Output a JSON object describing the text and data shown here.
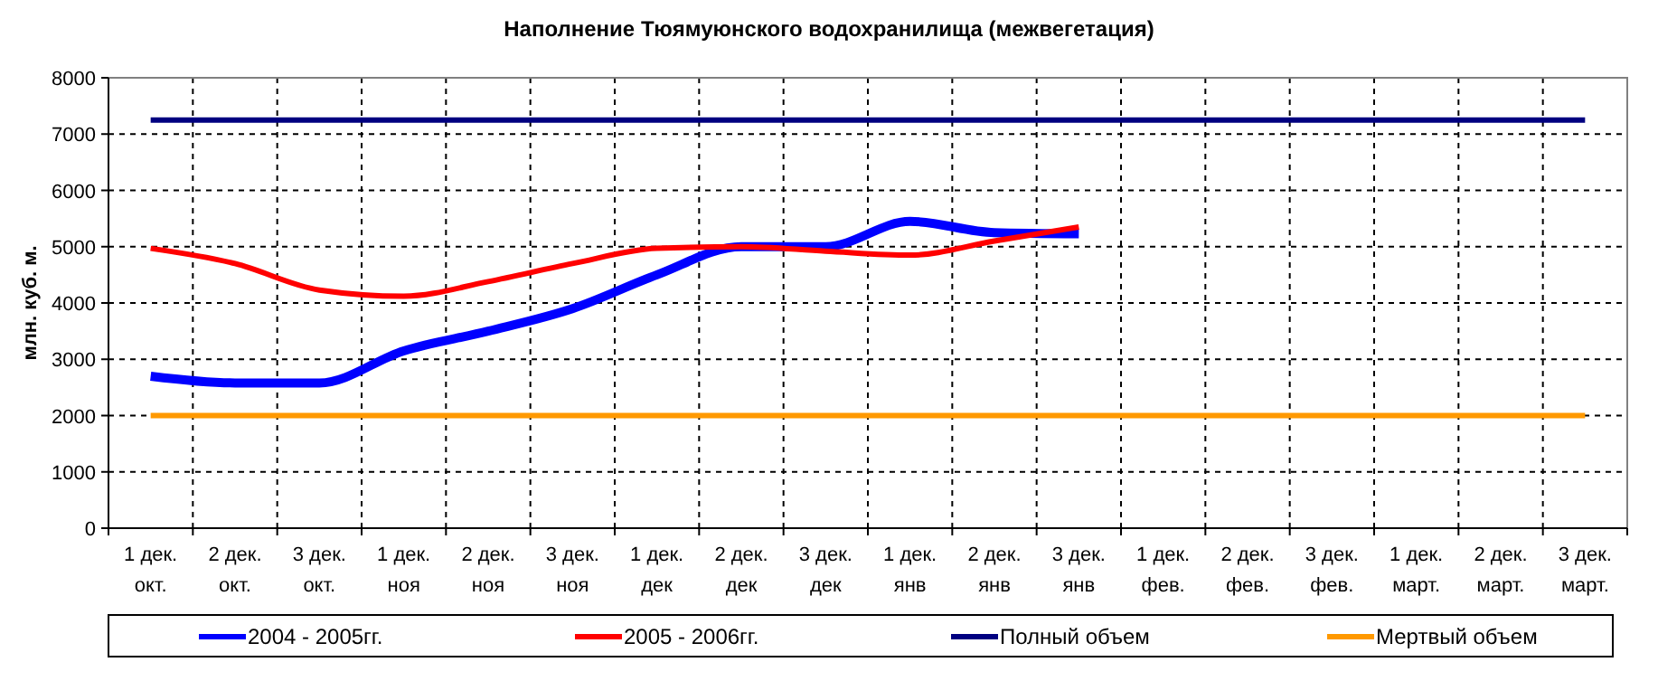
{
  "chart_data": {
    "type": "line",
    "title": "Наполнение Тюямуюнского водохранилища (межвегетация)",
    "ylabel": "млн. куб. м.",
    "categories": [
      "1 дек.\nокт.",
      "2 дек.\nокт.",
      "3 дек.\nокт.",
      "1 дек.\nноя",
      "2 дек.\nноя",
      "3 дек.\nноя",
      "1 дек.\nдек",
      "2 дек.\nдек",
      "3 дек.\nдек",
      "1 дек.\nянв",
      "2 дек.\nянв",
      "3 дек.\nянв",
      "1 дек.\nфев.",
      "2 дек.\nфев.",
      "3 дек.\nфев.",
      "1 дек.\nмарт.",
      "2 дек.\nмарт.",
      "3 дек.\nмарт."
    ],
    "series": [
      {
        "name": "2004 - 2005гг.",
        "color": "#0000ff",
        "values": [
          2700,
          2580,
          2580,
          3150,
          3500,
          3900,
          4500,
          5000,
          5000,
          5450,
          5250,
          5230,
          null,
          null,
          null,
          null,
          null,
          null
        ]
      },
      {
        "name": "2005 - 2006гг.",
        "color": "#ff0000",
        "values": [
          4970,
          4700,
          4230,
          4120,
          4380,
          4700,
          4970,
          5000,
          4920,
          4850,
          5100,
          5350,
          null,
          null,
          null,
          null,
          null,
          null
        ]
      },
      {
        "name": "Полный объем",
        "color": "#000080",
        "values": [
          7250,
          7250,
          7250,
          7250,
          7250,
          7250,
          7250,
          7250,
          7250,
          7250,
          7250,
          7250,
          7250,
          7250,
          7250,
          7250,
          7250,
          7250
        ]
      },
      {
        "name": "Мертвый объем",
        "color": "#ff9900",
        "values": [
          2000,
          2000,
          2000,
          2000,
          2000,
          2000,
          2000,
          2000,
          2000,
          2000,
          2000,
          2000,
          2000,
          2000,
          2000,
          2000,
          2000,
          2000
        ]
      }
    ],
    "ylim": [
      0,
      8000
    ],
    "yticks": [
      0,
      1000,
      2000,
      3000,
      4000,
      5000,
      6000,
      7000,
      8000
    ],
    "grid": true,
    "legend": "bottom",
    "marker": "none",
    "line_style": "solid"
  }
}
